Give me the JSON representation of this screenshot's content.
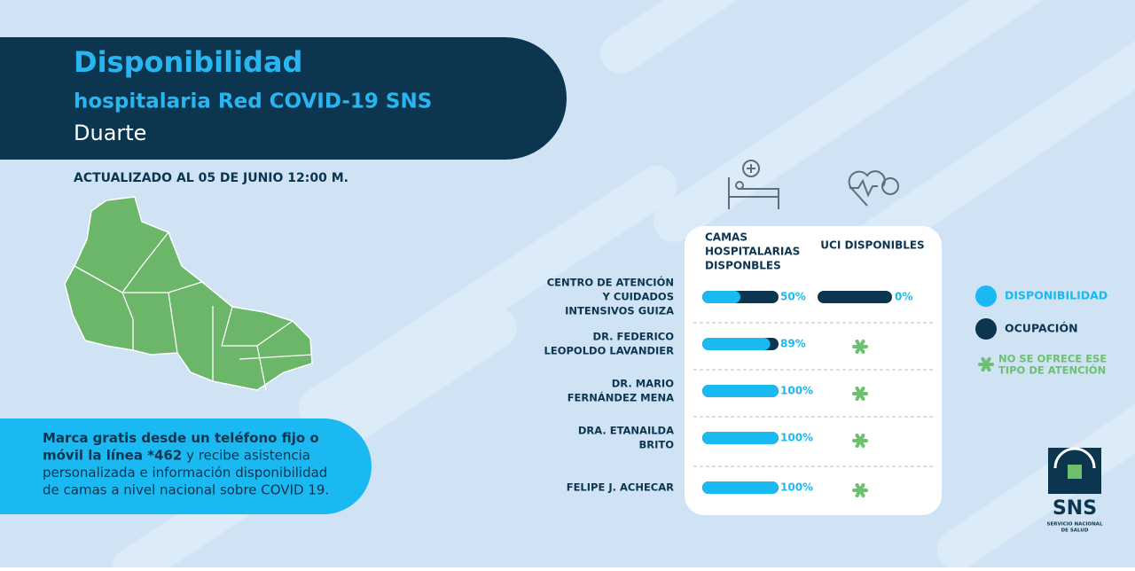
{
  "header": {
    "title": "Disponibilidad",
    "subtitle": "hospitalaria Red COVID-19 SNS",
    "region": "Duarte"
  },
  "updated": "ACTUALIZADO AL 05 DE JUNIO 12:00 M.",
  "info": {
    "lines": [
      [
        {
          "bold": "Marca gratis desde un teléfono fijo o"
        }
      ],
      [
        {
          "bold": "móvil la línea *462"
        },
        {
          "text": " y recibe asistencia"
        }
      ],
      [
        {
          "text": "personalizada e información disponibilidad"
        }
      ],
      [
        {
          "text": "de camas a nivel nacional sobre COVID 19."
        }
      ]
    ]
  },
  "table": {
    "columns": [
      [
        "CAMAS",
        "HOSPITALARIAS",
        "DISPONBLES"
      ],
      [
        "UCI DISPONIBLES"
      ]
    ],
    "rows": [
      {
        "name": [
          "CENTRO DE ATENCIÓN",
          "Y CUIDADOS",
          "INTENSIVOS GUIZA"
        ],
        "beds": 50,
        "beds_label": "50%",
        "uci": 0,
        "uci_label": "0%"
      },
      {
        "name": [
          "DR. FEDERICO",
          "LEOPOLDO LAVANDIER"
        ],
        "beds": 89,
        "beds_label": "89%",
        "uci": null
      },
      {
        "name": [
          "DR. MARIO",
          "FERNÁNDEZ MENA"
        ],
        "beds": 100,
        "beds_label": "100%",
        "uci": null
      },
      {
        "name": [
          "DRA. ETANAILDA",
          "BRITO"
        ],
        "beds": 100,
        "beds_label": "100%",
        "uci": null
      },
      {
        "name": [
          "FELIPE J. ACHECAR"
        ],
        "beds": 100,
        "beds_label": "100%",
        "uci": null
      }
    ]
  },
  "legend": {
    "available": "DISPONIBILIDAD",
    "occupied": "OCUPACIÓN",
    "not_offered": [
      "NO SE OFRECE ESE",
      "TIPO DE ATENCIÓN"
    ]
  },
  "colors": {
    "available": "#1ab9f2",
    "occupied": "#0c3550",
    "not_offered": "#6cc070"
  },
  "logo": {
    "name": "SNS",
    "sub": [
      "SERVICIO NACIONAL",
      "DE SALUD"
    ]
  }
}
